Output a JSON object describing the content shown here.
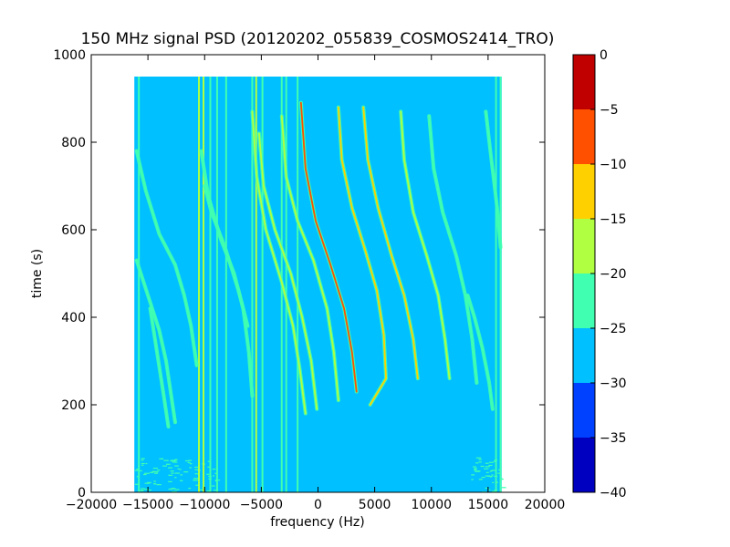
{
  "chart_data": {
    "type": "heatmap",
    "title": "150 MHz signal PSD (20120202_055839_COSMOS2414_TRO)",
    "xlabel": "frequency (Hz)",
    "ylabel": "time (s)",
    "xlim": [
      -20000,
      20000
    ],
    "ylim": [
      0,
      1000
    ],
    "x_ticks": [
      -20000,
      -15000,
      -10000,
      -5000,
      0,
      5000,
      10000,
      15000,
      20000
    ],
    "x_tick_labels": [
      "−20000",
      "−15000",
      "−10000",
      "−5000",
      "0",
      "5000",
      "10000",
      "15000",
      "20000"
    ],
    "y_ticks": [
      0,
      200,
      400,
      600,
      800,
      1000
    ],
    "y_tick_labels": [
      "0",
      "200",
      "400",
      "600",
      "800",
      "1000"
    ],
    "data_extent": {
      "x": [
        -16200,
        16200
      ],
      "y": [
        0,
        950
      ]
    },
    "background_level": -27,
    "noise_band": {
      "y": [
        0,
        80
      ],
      "level": -22
    },
    "colorbar": {
      "levels": [
        -40,
        -35,
        -30,
        -25,
        -20,
        -15,
        -10,
        -5,
        0
      ],
      "tick_labels": [
        "−40",
        "−35",
        "−30",
        "−25",
        "−20",
        "−15",
        "−10",
        "−5",
        "0"
      ],
      "colors": [
        "#0000c0",
        "#0040ff",
        "#00c0ff",
        "#40ffb0",
        "#b0ff40",
        "#ffd000",
        "#ff5000",
        "#c00000"
      ]
    },
    "vertical_lines": [
      {
        "x": -15800,
        "level": -22
      },
      {
        "x": -10500,
        "level": -18
      },
      {
        "x": -10100,
        "level": -20
      },
      {
        "x": -9500,
        "level": -22
      },
      {
        "x": -8900,
        "level": -23
      },
      {
        "x": -8100,
        "level": -24
      },
      {
        "x": -5800,
        "level": -22
      },
      {
        "x": -5450,
        "level": -20
      },
      {
        "x": -4900,
        "level": -22
      },
      {
        "x": -3200,
        "level": -23
      },
      {
        "x": -2800,
        "level": -24
      },
      {
        "x": -1800,
        "level": -22
      },
      {
        "x": 15700,
        "level": -22
      },
      {
        "x": 16100,
        "level": -24
      }
    ],
    "traces": [
      {
        "points": [
          [
            -16000,
            780
          ],
          [
            -15200,
            690
          ],
          [
            -14000,
            590
          ],
          [
            -12600,
            520
          ],
          [
            -11800,
            450
          ],
          [
            -11200,
            380
          ],
          [
            -10700,
            290
          ]
        ],
        "level": -22
      },
      {
        "points": [
          [
            -16000,
            530
          ],
          [
            -15000,
            450
          ],
          [
            -14000,
            370
          ],
          [
            -13400,
            300
          ],
          [
            -13000,
            230
          ],
          [
            -12600,
            160
          ]
        ],
        "level": -23
      },
      {
        "points": [
          [
            -14800,
            420
          ],
          [
            -14200,
            320
          ],
          [
            -13600,
            220
          ],
          [
            -13200,
            150
          ]
        ],
        "level": -24
      },
      {
        "points": [
          [
            -10300,
            780
          ],
          [
            -9700,
            680
          ],
          [
            -8600,
            580
          ],
          [
            -7400,
            500
          ],
          [
            -6600,
            420
          ],
          [
            -6100,
            320
          ],
          [
            -5800,
            220
          ]
        ],
        "level": -22
      },
      {
        "points": [
          [
            -10000,
            700
          ],
          [
            -9400,
            640
          ],
          [
            -8200,
            560
          ],
          [
            -7000,
            460
          ],
          [
            -6200,
            380
          ]
        ],
        "level": -24
      },
      {
        "points": [
          [
            -5800,
            870
          ],
          [
            -5400,
            720
          ],
          [
            -4600,
            600
          ],
          [
            -3200,
            480
          ],
          [
            -2200,
            380
          ],
          [
            -1600,
            280
          ],
          [
            -1100,
            180
          ]
        ],
        "level": -18
      },
      {
        "points": [
          [
            -5200,
            820
          ],
          [
            -4800,
            700
          ],
          [
            -3800,
            600
          ],
          [
            -2400,
            500
          ],
          [
            -1400,
            400
          ],
          [
            -600,
            300
          ],
          [
            -100,
            190
          ]
        ],
        "level": -17
      },
      {
        "points": [
          [
            -3200,
            860
          ],
          [
            -2800,
            720
          ],
          [
            -1800,
            620
          ],
          [
            -400,
            530
          ],
          [
            800,
            420
          ],
          [
            1400,
            320
          ],
          [
            1800,
            210
          ]
        ],
        "level": -20
      },
      {
        "points": [
          [
            -1500,
            890
          ],
          [
            -1100,
            740
          ],
          [
            -200,
            620
          ],
          [
            1100,
            520
          ],
          [
            2300,
            420
          ],
          [
            3000,
            320
          ],
          [
            3400,
            230
          ]
        ],
        "level": -10
      },
      {
        "points": [
          [
            1800,
            880
          ],
          [
            2100,
            760
          ],
          [
            3000,
            650
          ],
          [
            4200,
            550
          ],
          [
            5200,
            460
          ],
          [
            5800,
            360
          ],
          [
            6000,
            260
          ],
          [
            4600,
            200
          ]
        ],
        "level": -13
      },
      {
        "points": [
          [
            4000,
            880
          ],
          [
            4400,
            760
          ],
          [
            5300,
            650
          ],
          [
            6500,
            540
          ],
          [
            7600,
            450
          ],
          [
            8400,
            350
          ],
          [
            8800,
            260
          ]
        ],
        "level": -12
      },
      {
        "points": [
          [
            7300,
            870
          ],
          [
            7600,
            760
          ],
          [
            8400,
            640
          ],
          [
            9600,
            540
          ],
          [
            10600,
            450
          ],
          [
            11200,
            350
          ],
          [
            11600,
            260
          ]
        ],
        "level": -19
      },
      {
        "points": [
          [
            9800,
            860
          ],
          [
            10200,
            740
          ],
          [
            11000,
            640
          ],
          [
            12200,
            540
          ],
          [
            13000,
            450
          ],
          [
            13600,
            350
          ],
          [
            14000,
            250
          ]
        ],
        "level": -21
      },
      {
        "points": [
          [
            13200,
            450
          ],
          [
            13800,
            400
          ],
          [
            14500,
            330
          ],
          [
            15100,
            250
          ],
          [
            15400,
            190
          ]
        ],
        "level": -24
      },
      {
        "points": [
          [
            14800,
            870
          ],
          [
            15200,
            780
          ],
          [
            15800,
            650
          ],
          [
            16100,
            560
          ]
        ],
        "level": -22
      }
    ]
  }
}
